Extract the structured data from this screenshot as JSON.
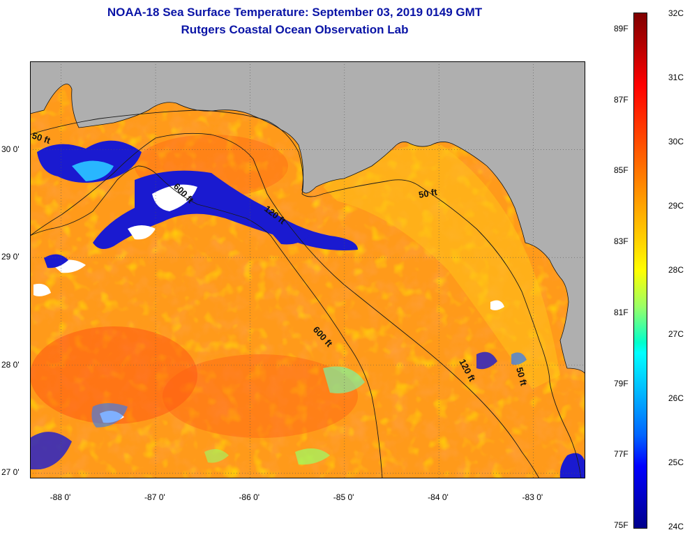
{
  "header": {
    "title": "NOAA-18 Sea Surface Temperature:  September 03, 2019 0149 GMT",
    "subtitle": "Rutgers Coastal Ocean Observation Lab"
  },
  "map": {
    "lon_range": [
      -88.33,
      -82.45
    ],
    "lat_range": [
      26.95,
      30.82
    ],
    "lon_ticks": [
      {
        "value": -88,
        "label": "-88 0'"
      },
      {
        "value": -87,
        "label": "-87 0'"
      },
      {
        "value": -86,
        "label": "-86 0'"
      },
      {
        "value": -85,
        "label": "-85 0'"
      },
      {
        "value": -84,
        "label": "-84 0'"
      },
      {
        "value": -83,
        "label": "-83 0'"
      }
    ],
    "lat_ticks": [
      {
        "value": 30,
        "label": "30 0'"
      },
      {
        "value": 29,
        "label": "29 0'"
      },
      {
        "value": 28,
        "label": "28 0'"
      },
      {
        "value": 27,
        "label": "27 0'"
      }
    ],
    "contour_labels": [
      "50 ft",
      "600 ft",
      "120 ft",
      "50 ft",
      "600 ft",
      "120 ft",
      "50 ft"
    ],
    "colors": {
      "land": "#afafaf",
      "warm_water": "#ff9a1a",
      "hot_water": "#ff5a14",
      "cool_water": "#ffd000",
      "cloud_blue": "#1a1ad0",
      "cloud_white": "#ffffff",
      "contour": "#1a1a1a"
    }
  },
  "colorbar": {
    "fahrenheit": [
      "89F",
      "87F",
      "85F",
      "83F",
      "81F",
      "79F",
      "77F",
      "75F"
    ],
    "celsius": [
      "32C",
      "31C",
      "30C",
      "29C",
      "28C",
      "27C",
      "26C",
      "25C",
      "24C"
    ]
  }
}
